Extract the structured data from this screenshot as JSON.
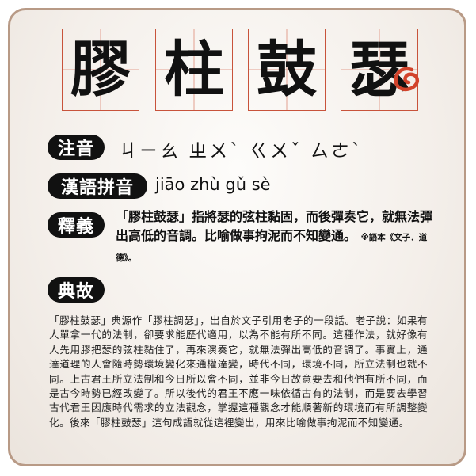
{
  "title": {
    "chars": [
      "膠",
      "柱",
      "鼓",
      "瑟"
    ]
  },
  "zhuyin": {
    "label": "注音",
    "value": "ㄐㄧㄠ ㄓㄨˋ ㄍㄨˇ ㄙㄜˋ"
  },
  "pinyin": {
    "label": "漢語拼音",
    "value": "jiāo zhù gǔ sè"
  },
  "meaning": {
    "label": "釋義",
    "text": "「膠柱鼓瑟」指將瑟的弦柱黏固，而後彈奏它，就無法彈出高低的音調。比喻做事拘泥而不知變通。",
    "source": "※語本《文子．道德》。"
  },
  "story": {
    "label": "典故",
    "text": "「膠柱鼓瑟」典源作「膠柱調瑟」，出自於文子引用老子的一段話。老子說：如果有人單拿一代的法制，卻要求能歷代適用，以為不能有所不同。這種作法，就好像有人先用膠把瑟的弦柱黏住了，再來演奏它，就無法彈出高低的音調了。事實上，通達道理的人會隨時勢環境變化來通權達變，時代不同，環境不同，所立法制也就不同。上古君王所立法制和今日所以會不同，並非今日故意要去和他們有所不同，而是古今時勢已經改變了。所以後代的君王不應一味依循古有的法制，而是要去學習古代君王因應時代需求的立法觀念，掌握這種觀念才能順著新的環境而有所調整變化。後來「膠柱鼓瑟」這句成語就從這裡變出，用來比喻做事拘泥而不知變通。"
  },
  "colors": {
    "accent": "#c8533b",
    "label_bg": "#111111",
    "border": "#b89a86"
  }
}
